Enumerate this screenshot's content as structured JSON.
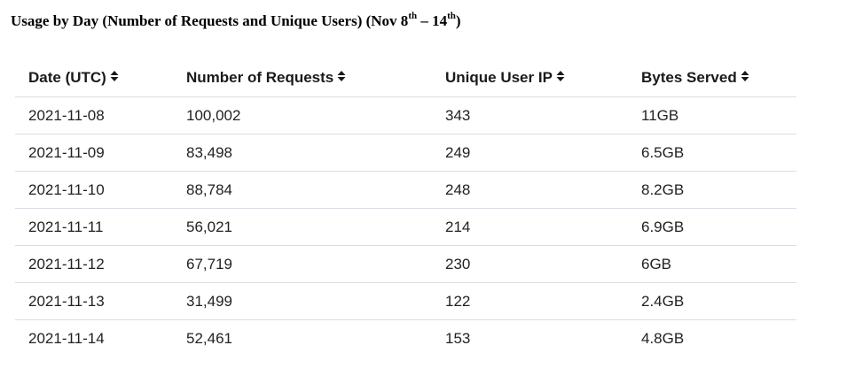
{
  "title": {
    "prefix": "Usage by Day (Number of Requests and Unique Users) (Nov 8",
    "sup1": "th",
    "middle": " – 14",
    "sup2": "th",
    "suffix": ")"
  },
  "table": {
    "columns": [
      "Date (UTC)",
      "Number of Requests",
      "Unique User IP",
      "Bytes Served"
    ],
    "sort_icon": "sort-updown-icon",
    "rows": [
      [
        "2021-11-08",
        "100,002",
        "343",
        "11GB"
      ],
      [
        "2021-11-09",
        "83,498",
        "249",
        "6.5GB"
      ],
      [
        "2021-11-10",
        "88,784",
        "248",
        "8.2GB"
      ],
      [
        "2021-11-11",
        "56,021",
        "214",
        "6.9GB"
      ],
      [
        "2021-11-12",
        "67,719",
        "230",
        "6GB"
      ],
      [
        "2021-11-13",
        "31,499",
        "122",
        "2.4GB"
      ],
      [
        "2021-11-14",
        "52,461",
        "153",
        "4.8GB"
      ]
    ]
  }
}
